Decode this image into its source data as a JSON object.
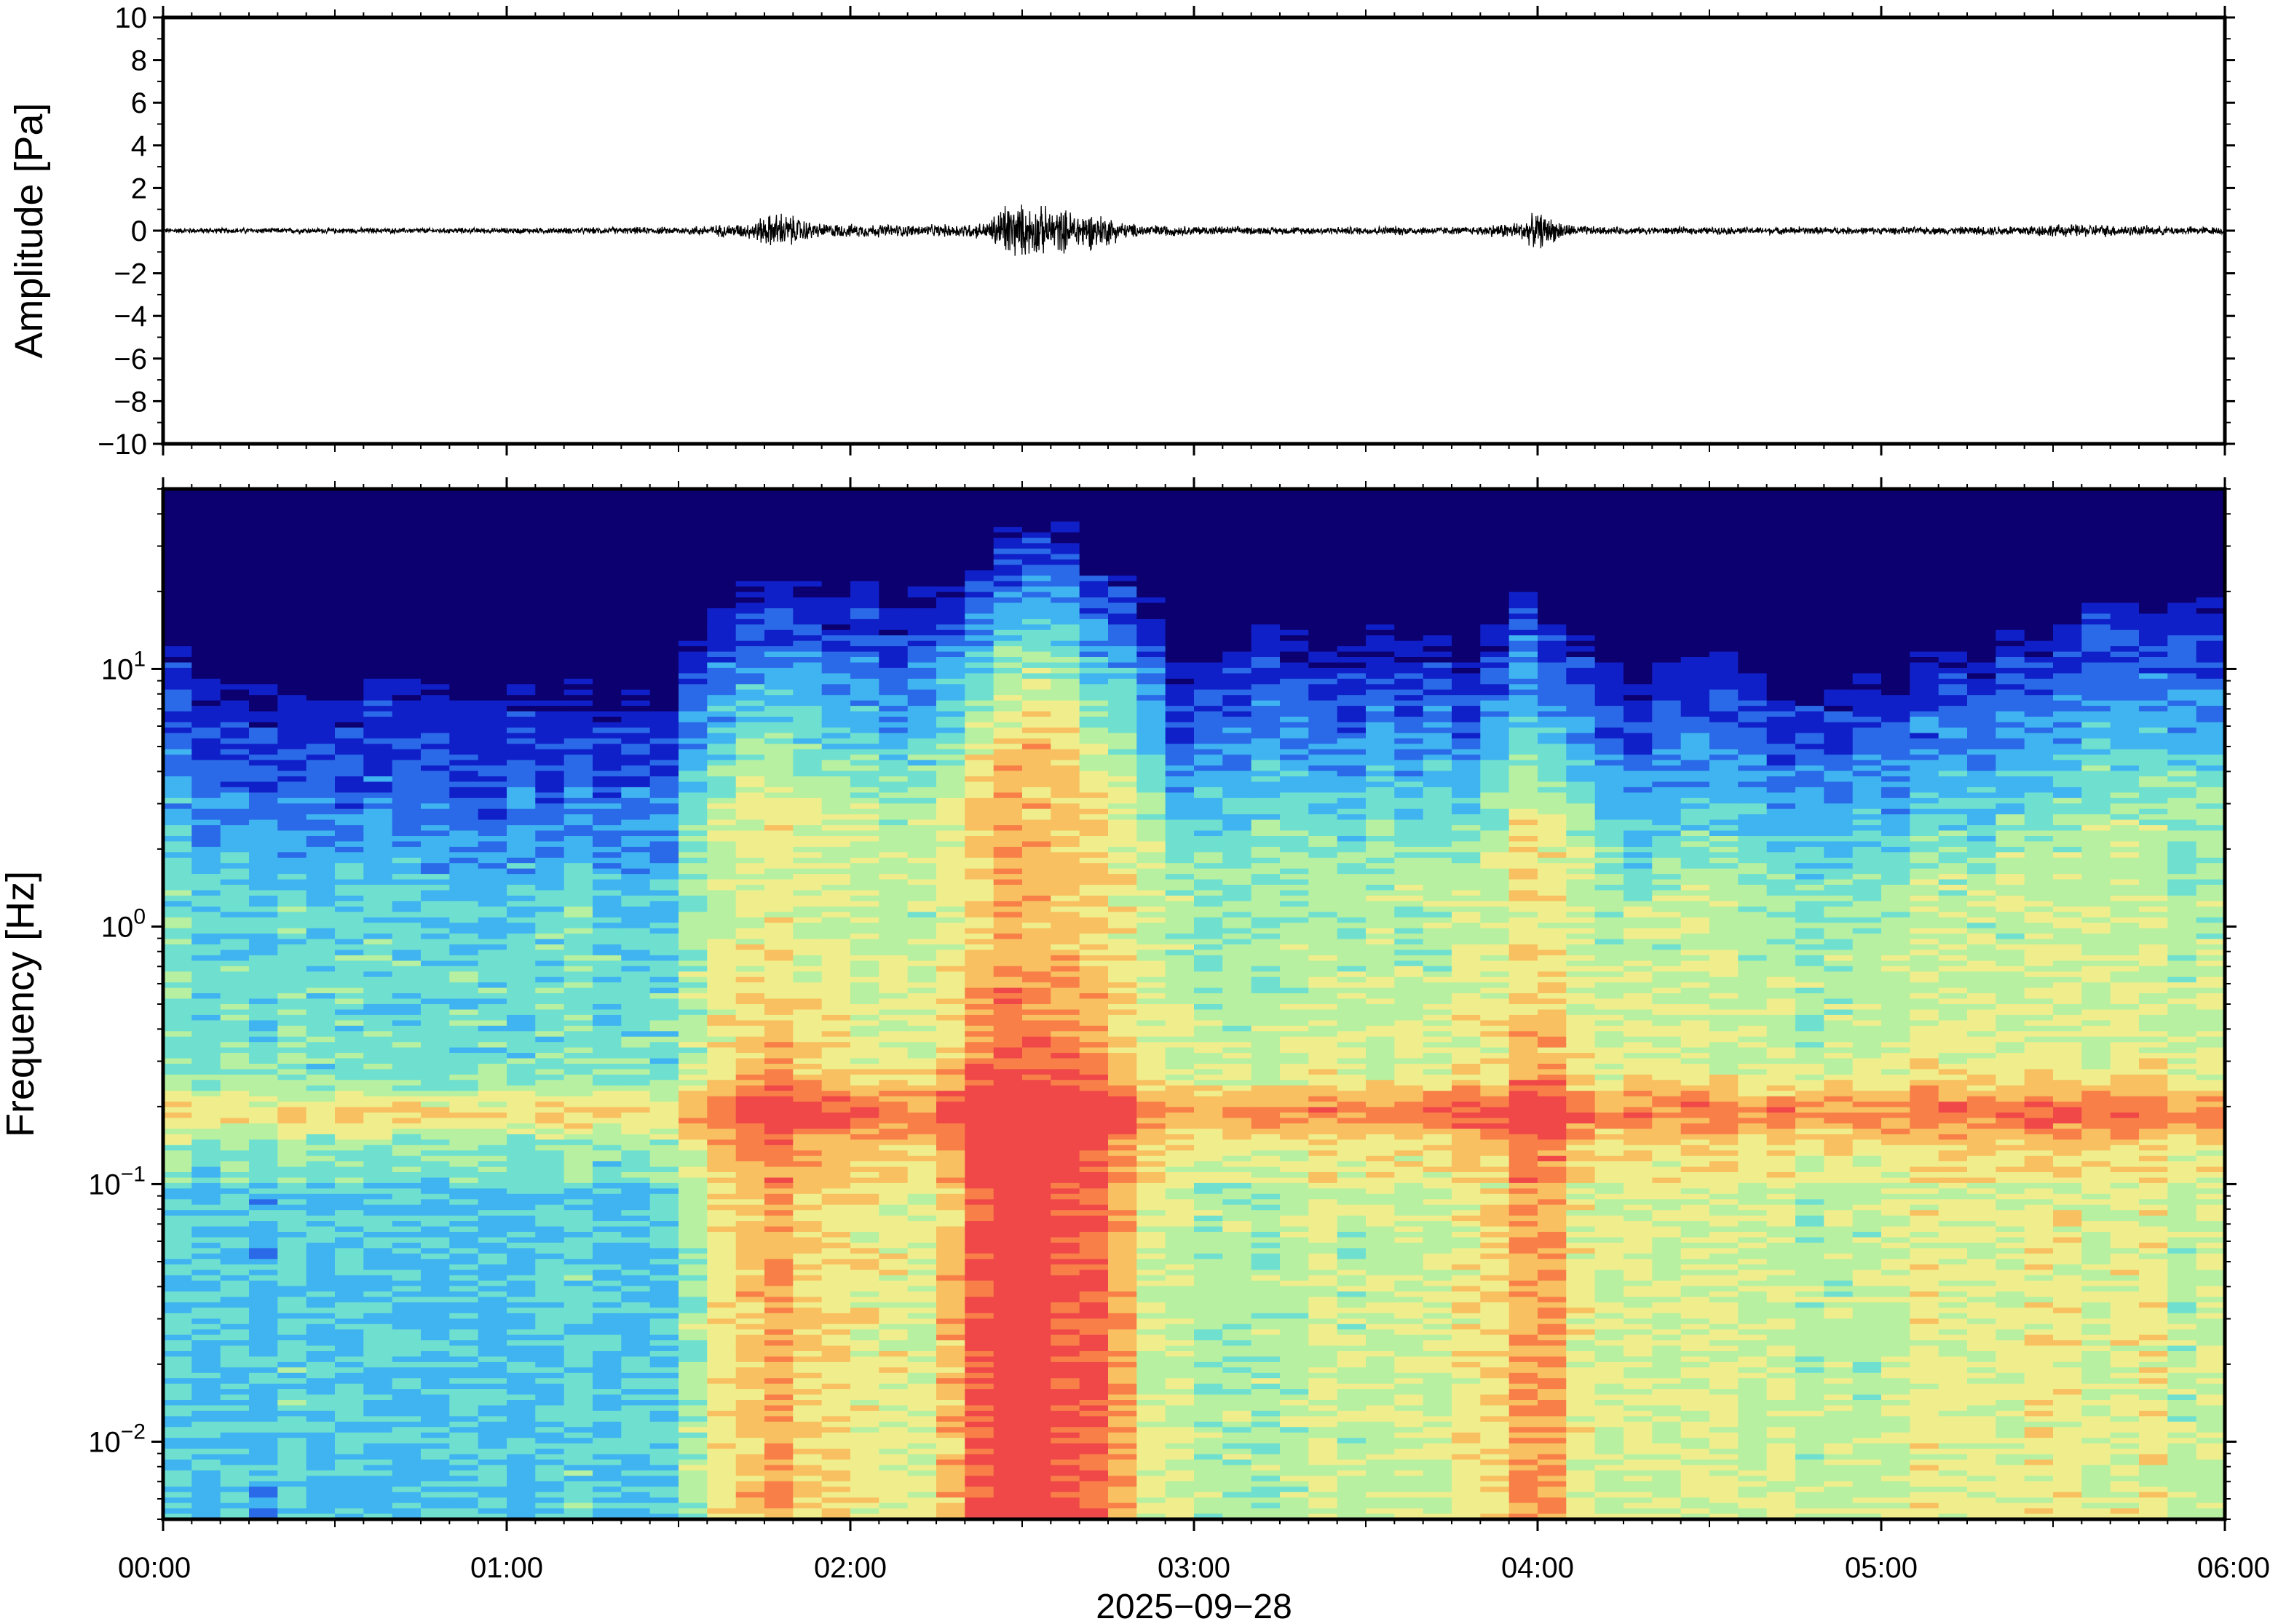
{
  "chart_data": [
    {
      "type": "line",
      "panel": "waveform",
      "ylabel": "Amplitude [Pa]",
      "ylim": [
        -10,
        10
      ],
      "y_ticks": [
        10,
        8,
        6,
        4,
        2,
        0,
        -2,
        -4,
        -6,
        -8,
        -10
      ],
      "y_tick_labels": [
        "10",
        "8",
        "6",
        "4",
        "2",
        "0",
        "−2",
        "−4",
        "−6",
        "−8",
        "−10"
      ],
      "x_unit": "hours since 2025-09-28 00:00",
      "xlim": [
        0,
        6
      ],
      "line_color": "#000000",
      "envelope": {
        "x": [
          0.0,
          0.5,
          1.0,
          1.5,
          1.6,
          1.7,
          1.75,
          1.8,
          1.85,
          1.9,
          2.0,
          2.1,
          2.2,
          2.3,
          2.4,
          2.45,
          2.5,
          2.55,
          2.6,
          2.65,
          2.7,
          2.75,
          2.8,
          2.9,
          3.0,
          3.2,
          3.4,
          3.6,
          3.8,
          3.95,
          4.0,
          4.05,
          4.1,
          4.2,
          4.4,
          4.6,
          4.8,
          5.0,
          5.2,
          5.4,
          5.6,
          5.8,
          6.0
        ],
        "amplitude": [
          0.15,
          0.15,
          0.15,
          0.2,
          0.3,
          0.4,
          0.8,
          1.0,
          0.7,
          0.4,
          0.35,
          0.35,
          0.3,
          0.35,
          0.45,
          1.6,
          1.4,
          1.3,
          1.2,
          1.1,
          1.0,
          0.8,
          0.4,
          0.3,
          0.25,
          0.2,
          0.2,
          0.25,
          0.2,
          0.5,
          1.0,
          0.6,
          0.3,
          0.2,
          0.2,
          0.2,
          0.2,
          0.2,
          0.2,
          0.3,
          0.35,
          0.25,
          0.2
        ]
      }
    },
    {
      "type": "heatmap",
      "panel": "spectrogram",
      "ylabel": "Frequency [Hz]",
      "xlabel": "2025−09−28",
      "y_scale": "log",
      "ylim_hz": [
        0.005,
        50
      ],
      "y_ticks": [
        {
          "value": 10,
          "base": "10",
          "exp": "1"
        },
        {
          "value": 1,
          "base": "10",
          "exp": "0"
        },
        {
          "value": 0.1,
          "base": "10",
          "exp": "−1"
        },
        {
          "value": 0.01,
          "base": "10",
          "exp": "−2"
        }
      ],
      "x_ticks": [
        0,
        1,
        2,
        3,
        4,
        5,
        6
      ],
      "x_tick_labels": [
        "00:00",
        "01:00",
        "02:00",
        "03:00",
        "04:00",
        "05:00",
        "06:00"
      ],
      "colormap": [
        "#0c0070",
        "#1020c8",
        "#2a6ae8",
        "#3fb4f0",
        "#6fe0d0",
        "#b6f0a0",
        "#f0ee8c",
        "#f8c060",
        "#f88048",
        "#f04848"
      ],
      "upper_cutoff_hz": {
        "x": [
          0.0,
          0.25,
          0.5,
          0.75,
          1.0,
          1.25,
          1.5,
          1.55,
          1.7,
          1.85,
          1.95,
          2.1,
          2.25,
          2.4,
          2.5,
          2.6,
          2.75,
          2.9,
          3.0,
          3.2,
          3.4,
          3.6,
          3.8,
          3.95,
          4.05,
          4.15,
          4.3,
          4.5,
          4.7,
          4.9,
          5.1,
          5.3,
          5.5,
          5.7,
          5.9,
          6.0
        ],
        "hz": [
          12,
          9,
          8,
          8,
          8,
          8,
          7.5,
          18,
          20,
          25,
          22,
          18,
          24,
          28,
          40,
          36,
          28,
          14,
          10,
          15,
          12,
          15,
          10,
          22,
          18,
          12,
          10,
          11,
          9,
          9,
          10,
          11,
          16,
          18,
          22,
          20
        ]
      },
      "energy_level": {
        "x": [
          0.0,
          0.5,
          1.0,
          1.5,
          1.6,
          1.8,
          2.0,
          2.2,
          2.45,
          2.55,
          2.7,
          2.85,
          3.0,
          3.3,
          3.6,
          3.9,
          4.0,
          4.1,
          4.4,
          4.7,
          5.0,
          5.3,
          5.6,
          6.0
        ],
        "level": [
          0.1,
          0.1,
          0.1,
          0.12,
          0.45,
          0.6,
          0.45,
          0.4,
          0.95,
          0.9,
          0.8,
          0.45,
          0.35,
          0.35,
          0.35,
          0.45,
          0.7,
          0.45,
          0.35,
          0.35,
          0.35,
          0.45,
          0.4,
          0.35
        ]
      },
      "microbarom_band_hz": [
        0.15,
        0.25
      ]
    }
  ]
}
